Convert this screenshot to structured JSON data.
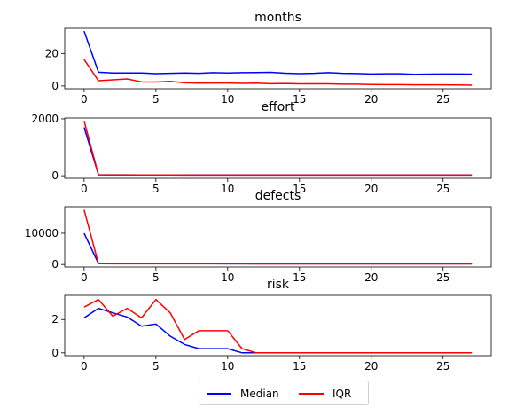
{
  "colors": {
    "median": "#0000ff",
    "iqr": "#ff0000"
  },
  "legend": {
    "items": [
      {
        "label": "Median",
        "color": "#0000ff"
      },
      {
        "label": "IQR",
        "color": "#ff0000"
      }
    ]
  },
  "chart_data": [
    {
      "type": "line",
      "title": "months",
      "x": [
        0,
        1,
        2,
        3,
        4,
        5,
        6,
        7,
        8,
        9,
        10,
        11,
        12,
        13,
        14,
        15,
        16,
        17,
        18,
        19,
        20,
        21,
        22,
        23,
        24,
        25,
        26,
        27
      ],
      "xticks": [
        0,
        5,
        10,
        15,
        20,
        25
      ],
      "xlim": [
        -1.35,
        28.35
      ],
      "yticks": [
        0,
        20
      ],
      "ylim": [
        -1.7,
        35.5
      ],
      "series": [
        {
          "name": "Median",
          "color": "#0000ff",
          "values": [
            33.8,
            8.5,
            8.0,
            8.0,
            8.0,
            7.6,
            7.8,
            8.0,
            7.8,
            8.2,
            8.0,
            8.2,
            8.3,
            8.4,
            7.9,
            7.6,
            7.8,
            8.2,
            7.8,
            7.7,
            7.4,
            7.5,
            7.5,
            7.2,
            7.3,
            7.4,
            7.4,
            7.3
          ]
        },
        {
          "name": "IQR",
          "color": "#ff0000",
          "values": [
            16.3,
            3.2,
            3.8,
            4.3,
            2.5,
            2.4,
            2.8,
            1.9,
            1.7,
            1.8,
            1.8,
            1.6,
            1.7,
            1.4,
            1.5,
            1.3,
            1.3,
            1.3,
            1.1,
            1.1,
            0.9,
            0.8,
            0.8,
            0.7,
            0.7,
            0.7,
            0.6,
            0.5
          ]
        }
      ]
    },
    {
      "type": "line",
      "title": "effort",
      "x": [
        0,
        1,
        2,
        3,
        4,
        5,
        6,
        7,
        8,
        9,
        10,
        11,
        12,
        13,
        14,
        15,
        16,
        17,
        18,
        19,
        20,
        21,
        22,
        23,
        24,
        25,
        26,
        27
      ],
      "xticks": [
        0,
        5,
        10,
        15,
        20,
        25
      ],
      "xlim": [
        -1.35,
        28.35
      ],
      "yticks": [
        0,
        2000
      ],
      "ylim": [
        -90,
        2030
      ],
      "series": [
        {
          "name": "Median",
          "color": "#0000ff",
          "values": [
            1700,
            35,
            32,
            30,
            28,
            28,
            27,
            27,
            26,
            26,
            26,
            25,
            25,
            25,
            25,
            25,
            25,
            25,
            25,
            25,
            25,
            25,
            25,
            25,
            25,
            25,
            25,
            25
          ]
        },
        {
          "name": "IQR",
          "color": "#ff0000",
          "values": [
            1930,
            30,
            28,
            27,
            26,
            25,
            25,
            24,
            24,
            23,
            23,
            23,
            23,
            22,
            22,
            22,
            22,
            22,
            22,
            22,
            22,
            22,
            22,
            22,
            22,
            22,
            22,
            22
          ]
        }
      ]
    },
    {
      "type": "line",
      "title": "defects",
      "x": [
        0,
        1,
        2,
        3,
        4,
        5,
        6,
        7,
        8,
        9,
        10,
        11,
        12,
        13,
        14,
        15,
        16,
        17,
        18,
        19,
        20,
        21,
        22,
        23,
        24,
        25,
        26,
        27
      ],
      "xticks": [
        0,
        5,
        10,
        15,
        20,
        25
      ],
      "xlim": [
        -1.35,
        28.35
      ],
      "yticks": [
        0,
        10000
      ],
      "ylim": [
        -800,
        18500
      ],
      "series": [
        {
          "name": "Median",
          "color": "#0000ff",
          "values": [
            10000,
            300,
            280,
            270,
            260,
            255,
            250,
            250,
            248,
            246,
            245,
            244,
            243,
            242,
            241,
            240,
            240,
            240,
            240,
            240,
            240,
            240,
            240,
            240,
            240,
            240,
            240,
            240
          ]
        },
        {
          "name": "IQR",
          "color": "#ff0000",
          "values": [
            17500,
            250,
            240,
            230,
            225,
            220,
            218,
            216,
            215,
            214,
            213,
            212,
            211,
            210,
            210,
            210,
            210,
            210,
            210,
            210,
            210,
            210,
            210,
            210,
            210,
            210,
            210,
            210
          ]
        }
      ]
    },
    {
      "type": "line",
      "title": "risk",
      "x": [
        0,
        1,
        2,
        3,
        4,
        5,
        6,
        7,
        8,
        9,
        10,
        11,
        12,
        13,
        14,
        15,
        16,
        17,
        18,
        19,
        20,
        21,
        22,
        23,
        24,
        25,
        26,
        27
      ],
      "xticks": [
        0,
        5,
        10,
        15,
        20,
        25
      ],
      "xlim": [
        -1.35,
        28.35
      ],
      "yticks": [
        0,
        2
      ],
      "ylim": [
        -0.17,
        3.45
      ],
      "series": [
        {
          "name": "Median",
          "color": "#0000ff",
          "values": [
            2.1,
            2.67,
            2.4,
            2.15,
            1.6,
            1.73,
            1.0,
            0.5,
            0.25,
            0.25,
            0.25,
            0.0,
            0.0,
            0.0,
            0.0,
            0.0,
            0.0,
            0.0,
            0.0,
            0.0,
            0.0,
            0.0,
            0.0,
            0.0,
            0.0,
            0.0,
            0.0,
            0.0
          ]
        },
        {
          "name": "IQR",
          "color": "#ff0000",
          "values": [
            2.75,
            3.2,
            2.2,
            2.67,
            2.1,
            3.2,
            2.4,
            0.8,
            1.33,
            1.33,
            1.33,
            0.25,
            0.0,
            0.0,
            0.0,
            0.0,
            0.0,
            0.0,
            0.0,
            0.0,
            0.0,
            0.0,
            0.0,
            0.0,
            0.0,
            0.0,
            0.0,
            0.0
          ]
        }
      ]
    }
  ]
}
